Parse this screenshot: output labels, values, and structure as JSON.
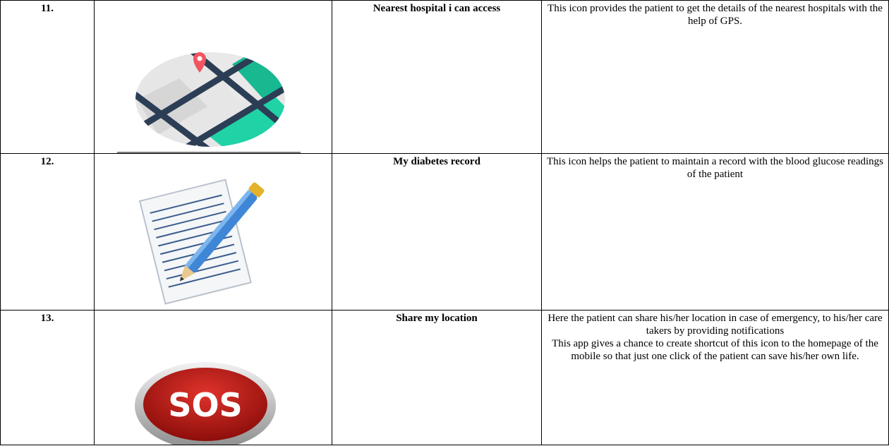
{
  "table": {
    "rows": [
      {
        "number": "11.",
        "name": "Nearest hospital i can access",
        "description": [
          "This icon provides the patient to get the details of the nearest hospitals with the help of GPS."
        ]
      },
      {
        "number": "12.",
        "name": "My diabetes record",
        "description": [
          "This icon helps the patient to maintain a record with the blood glucose readings of the patient"
        ]
      },
      {
        "number": "13.",
        "name": "Share my location",
        "icon_label": "SOS",
        "description": [
          "Here the patient can share his/her location in case of emergency, to his/her care takers by providing notifications",
          "This app gives a chance to create shortcut of this icon to the homepage of the mobile so that just one click of the patient can save his/her own life."
        ]
      }
    ]
  }
}
